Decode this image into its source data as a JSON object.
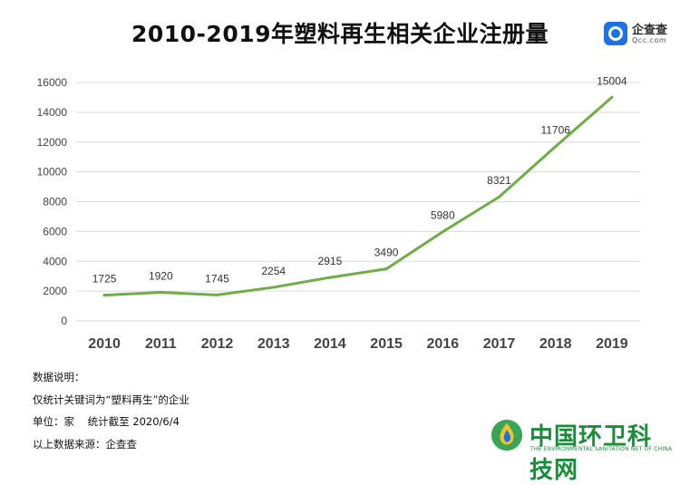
{
  "title": "2010-2019年塑料再生相关企业注册量",
  "source_logo": {
    "name": "企查查",
    "sub": "Qcc.com"
  },
  "notes": [
    "数据说明：",
    "仅统计关键词为“塑料再生”的企业",
    "单位：家    统计截至 2020/6/4",
    "以上数据来源：企查查"
  ],
  "watermark": {
    "name": "中国环卫科技网",
    "sub": "THE ENVIRONMENTAL SANITATION NET OF CHINA"
  },
  "colors": {
    "line": "#70ad47",
    "grid": "#d9d9d9",
    "qcc_blue": "#1f73e0",
    "watermark_green": "#1a8c3a"
  },
  "chart_data": {
    "type": "line",
    "categories": [
      "2010",
      "2011",
      "2012",
      "2013",
      "2014",
      "2015",
      "2016",
      "2017",
      "2018",
      "2019"
    ],
    "values": [
      1725,
      1920,
      1745,
      2254,
      2915,
      3490,
      5980,
      8321,
      11706,
      15004
    ],
    "ylim": [
      0,
      16000
    ],
    "yticks": [
      0,
      2000,
      4000,
      6000,
      8000,
      10000,
      12000,
      14000,
      16000
    ],
    "grid": true,
    "data_labels": true
  }
}
